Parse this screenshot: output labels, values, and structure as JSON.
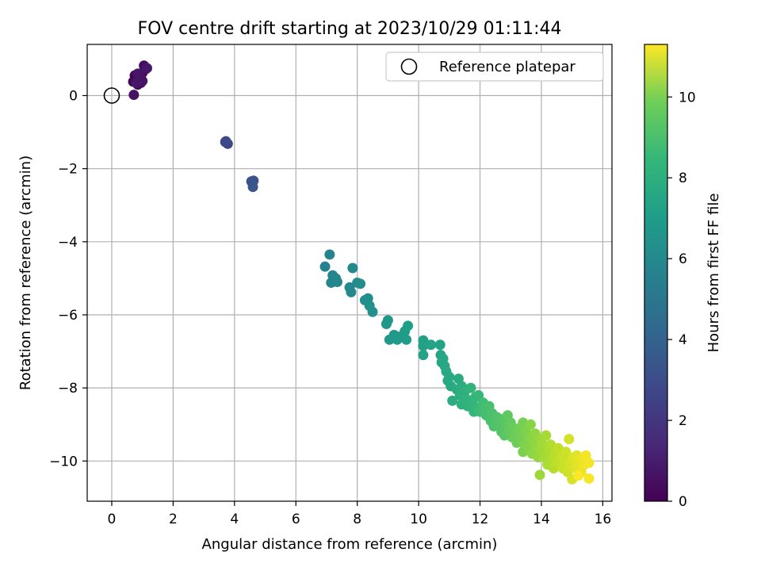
{
  "chart_data": {
    "type": "scatter",
    "title": "FOV centre drift starting at 2023/10/29 01:11:44",
    "xlabel": "Angular distance from reference (arcmin)",
    "ylabel": "Rotation from reference (arcmin)",
    "xlim": [
      -0.8,
      16.3
    ],
    "ylim": [
      -11.1,
      1.4
    ],
    "xticks": [
      0,
      2,
      4,
      6,
      8,
      10,
      12,
      14,
      16
    ],
    "xtick_labels": [
      "0",
      "2",
      "4",
      "6",
      "8",
      "10",
      "12",
      "14",
      "16"
    ],
    "yticks": [
      0,
      -2,
      -4,
      -6,
      -8,
      -10
    ],
    "ytick_labels": [
      "0",
      "−2",
      "−4",
      "−6",
      "−8",
      "−10"
    ],
    "grid": true,
    "legend": {
      "position": "top-right",
      "entries": [
        "Reference platepar"
      ]
    },
    "reference_point": {
      "x": 0,
      "y": 0
    },
    "colorbar": {
      "label": "Hours from first FF file",
      "colormap": "viridis",
      "range": [
        0,
        11.3
      ],
      "ticks": [
        0,
        2,
        4,
        6,
        8,
        10
      ],
      "tick_labels": [
        "0",
        "2",
        "4",
        "6",
        "8",
        "10"
      ]
    },
    "series": [
      {
        "points": [
          [
            0.7,
            0.38,
            0.05
          ],
          [
            0.75,
            0.55,
            0.1
          ],
          [
            0.8,
            0.42,
            0.15
          ],
          [
            0.85,
            0.3,
            0.2
          ],
          [
            0.9,
            0.52,
            0.25
          ],
          [
            0.95,
            0.35,
            0.3
          ],
          [
            1.0,
            0.62,
            0.35
          ],
          [
            1.05,
            0.82,
            0.4
          ],
          [
            1.1,
            0.72,
            0.45
          ],
          [
            0.95,
            0.48,
            0.5
          ],
          [
            0.72,
            0.02,
            0.55
          ],
          [
            1.0,
            0.4,
            0.6
          ],
          [
            0.85,
            0.6,
            0.65
          ],
          [
            1.15,
            0.75,
            0.7
          ],
          [
            0.8,
            0.35,
            0.72
          ],
          [
            3.7,
            -1.27,
            2.3
          ],
          [
            3.78,
            -1.32,
            2.4
          ],
          [
            3.72,
            -1.25,
            2.5
          ],
          [
            4.55,
            -2.35,
            2.8
          ],
          [
            4.62,
            -2.33,
            2.9
          ],
          [
            4.6,
            -2.5,
            3.0
          ],
          [
            6.95,
            -4.68,
            5.0
          ],
          [
            7.1,
            -4.35,
            5.05
          ],
          [
            7.2,
            -4.92,
            5.1
          ],
          [
            7.15,
            -5.12,
            5.15
          ],
          [
            7.35,
            -5.1,
            5.2
          ],
          [
            7.3,
            -5.0,
            5.25
          ],
          [
            7.75,
            -5.25,
            5.3
          ],
          [
            7.8,
            -5.38,
            5.35
          ],
          [
            7.85,
            -4.72,
            5.4
          ],
          [
            8.0,
            -5.12,
            5.45
          ],
          [
            8.1,
            -5.15,
            5.5
          ],
          [
            8.25,
            -5.6,
            5.55
          ],
          [
            8.35,
            -5.55,
            5.6
          ],
          [
            8.4,
            -5.75,
            5.65
          ],
          [
            8.5,
            -5.92,
            5.7
          ],
          [
            8.95,
            -6.25,
            5.9
          ],
          [
            9.0,
            -6.15,
            5.95
          ],
          [
            9.05,
            -6.68,
            6.0
          ],
          [
            9.2,
            -6.55,
            6.05
          ],
          [
            9.3,
            -6.68,
            6.1
          ],
          [
            9.35,
            -6.6,
            6.15
          ],
          [
            9.55,
            -6.45,
            6.2
          ],
          [
            9.6,
            -6.68,
            6.25
          ],
          [
            9.65,
            -6.3,
            6.3
          ],
          [
            10.15,
            -6.7,
            6.4
          ],
          [
            10.15,
            -6.85,
            6.45
          ],
          [
            10.15,
            -7.1,
            6.5
          ],
          [
            10.4,
            -6.82,
            6.55
          ],
          [
            10.7,
            -6.82,
            6.6
          ],
          [
            10.72,
            -7.1,
            6.65
          ],
          [
            10.75,
            -7.3,
            6.7
          ],
          [
            10.8,
            -7.2,
            6.72
          ],
          [
            10.85,
            -7.4,
            6.75
          ],
          [
            10.9,
            -7.55,
            6.78
          ],
          [
            10.95,
            -7.8,
            6.8
          ],
          [
            11.0,
            -7.7,
            6.82
          ],
          [
            11.05,
            -7.95,
            6.85
          ],
          [
            11.3,
            -7.75,
            6.9
          ],
          [
            11.25,
            -8.05,
            6.95
          ],
          [
            11.1,
            -8.35,
            7.0
          ],
          [
            11.4,
            -7.95,
            7.05
          ],
          [
            11.35,
            -8.2,
            7.1
          ],
          [
            11.4,
            -8.45,
            7.15
          ],
          [
            11.5,
            -8.1,
            7.2
          ],
          [
            11.55,
            -8.3,
            7.25
          ],
          [
            11.6,
            -8.5,
            7.3
          ],
          [
            11.7,
            -8.0,
            7.35
          ],
          [
            11.75,
            -8.4,
            7.4
          ],
          [
            11.8,
            -8.65,
            7.45
          ],
          [
            11.85,
            -8.25,
            7.5
          ],
          [
            11.95,
            -8.2,
            7.55
          ],
          [
            11.95,
            -8.55,
            7.6
          ],
          [
            12.0,
            -8.65,
            7.7
          ],
          [
            12.1,
            -8.4,
            7.8
          ],
          [
            12.15,
            -8.6,
            7.85
          ],
          [
            12.2,
            -8.75,
            7.9
          ],
          [
            12.3,
            -8.5,
            7.95
          ],
          [
            12.35,
            -8.9,
            8.0
          ],
          [
            12.4,
            -8.7,
            8.05
          ],
          [
            12.45,
            -9.05,
            8.1
          ],
          [
            12.55,
            -8.8,
            8.15
          ],
          [
            12.6,
            -9.0,
            8.2
          ],
          [
            12.7,
            -9.2,
            8.25
          ],
          [
            12.75,
            -8.85,
            8.3
          ],
          [
            12.8,
            -9.3,
            8.35
          ],
          [
            12.85,
            -9.05,
            8.4
          ],
          [
            12.9,
            -8.75,
            8.45
          ],
          [
            12.95,
            -9.2,
            8.5
          ],
          [
            13.0,
            -8.95,
            8.55
          ],
          [
            13.05,
            -9.35,
            8.6
          ],
          [
            13.1,
            -9.1,
            8.65
          ],
          [
            13.15,
            -9.3,
            8.7
          ],
          [
            13.2,
            -9.5,
            8.75
          ],
          [
            13.25,
            -9.2,
            8.8
          ],
          [
            13.3,
            -9.1,
            8.85
          ],
          [
            13.35,
            -9.4,
            8.9
          ],
          [
            13.4,
            -8.95,
            8.95
          ],
          [
            13.4,
            -9.75,
            9.0
          ],
          [
            13.45,
            -9.55,
            9.05
          ],
          [
            13.5,
            -9.2,
            9.1
          ],
          [
            13.55,
            -9.65,
            9.15
          ],
          [
            13.6,
            -9.35,
            9.2
          ],
          [
            13.65,
            -9.0,
            9.25
          ],
          [
            13.7,
            -9.8,
            9.3
          ],
          [
            13.75,
            -9.5,
            9.35
          ],
          [
            13.8,
            -9.25,
            9.4
          ],
          [
            13.85,
            -9.65,
            9.45
          ],
          [
            13.9,
            -9.9,
            9.5
          ],
          [
            13.95,
            -9.4,
            9.55
          ],
          [
            13.95,
            -10.38,
            9.6
          ],
          [
            14.0,
            -9.7,
            9.65
          ],
          [
            14.05,
            -9.55,
            9.7
          ],
          [
            14.1,
            -9.9,
            9.75
          ],
          [
            14.15,
            -9.3,
            9.8
          ],
          [
            14.2,
            -10.1,
            9.85
          ],
          [
            14.25,
            -9.75,
            9.9
          ],
          [
            14.3,
            -9.55,
            9.95
          ],
          [
            14.35,
            -9.95,
            10.0
          ],
          [
            14.4,
            -10.2,
            10.05
          ],
          [
            14.45,
            -9.8,
            10.1
          ],
          [
            14.5,
            -10.0,
            10.15
          ],
          [
            14.55,
            -9.65,
            10.2
          ],
          [
            14.6,
            -10.1,
            10.25
          ],
          [
            14.65,
            -9.85,
            10.3
          ],
          [
            14.7,
            -10.2,
            10.35
          ],
          [
            14.75,
            -9.95,
            10.4
          ],
          [
            14.8,
            -9.75,
            10.45
          ],
          [
            14.85,
            -10.3,
            10.5
          ],
          [
            14.9,
            -9.4,
            10.55
          ],
          [
            14.95,
            -10.05,
            10.6
          ],
          [
            15.0,
            -10.5,
            10.65
          ],
          [
            15.05,
            -9.9,
            10.7
          ],
          [
            15.1,
            -10.2,
            10.75
          ],
          [
            15.15,
            -9.85,
            10.8
          ],
          [
            15.2,
            -10.1,
            10.85
          ],
          [
            15.25,
            -9.95,
            10.9
          ],
          [
            15.3,
            -10.3,
            10.95
          ],
          [
            15.35,
            -9.9,
            11.0
          ],
          [
            15.4,
            -10.1,
            11.05
          ],
          [
            15.45,
            -9.85,
            11.1
          ],
          [
            15.55,
            -10.05,
            11.15
          ],
          [
            15.55,
            -10.48,
            11.2
          ],
          [
            15.2,
            -10.4,
            11.25
          ]
        ]
      }
    ]
  }
}
